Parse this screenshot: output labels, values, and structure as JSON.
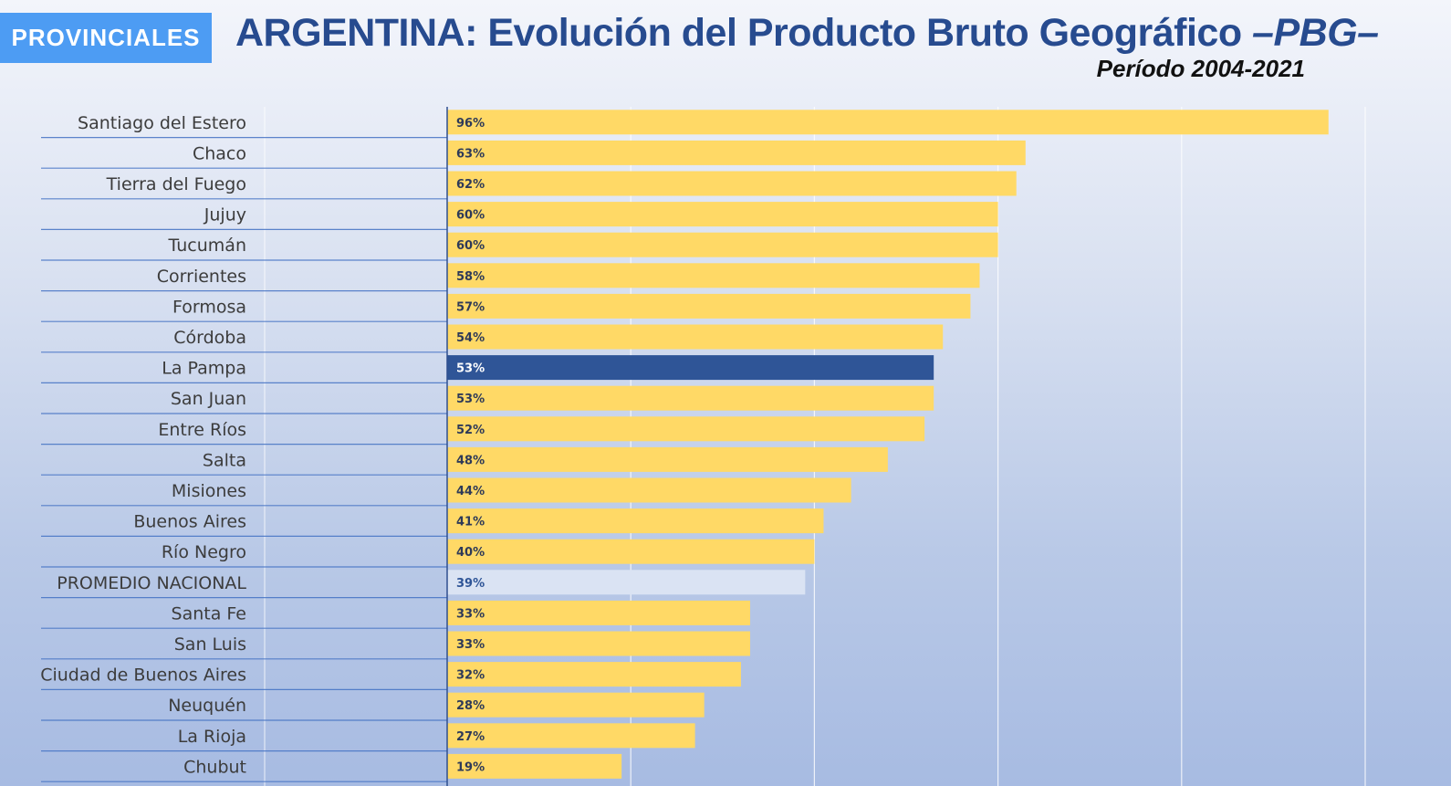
{
  "header": {
    "badge": "PROVINCIALES",
    "title_main": "ARGENTINA: Evolución del Producto Bruto Geográfico ",
    "title_pbg": "–PBG–",
    "subtitle": "Período 2004-2021"
  },
  "colors": {
    "bar": "#ffd966",
    "highlight": "#2f5597",
    "average": "#dae3f3",
    "label_dark": "#2e3a58",
    "label_light": "#ffffff",
    "label_average": "#2f5597",
    "grid": "#ffffff",
    "row_line": "#4472c4"
  },
  "chart_data": {
    "type": "bar",
    "orientation": "horizontal",
    "title": "ARGENTINA: Evolución del Producto Bruto Geográfico –PBG–",
    "subtitle": "Período 2004-2021",
    "xlim": [
      0,
      100
    ],
    "grid": true,
    "categories": [
      "Santiago del Estero",
      "Chaco",
      "Tierra del Fuego",
      "Jujuy",
      "Tucumán",
      "Corrientes",
      "Formosa",
      "Córdoba",
      "La Pampa",
      "San Juan",
      "Entre Ríos",
      "Salta",
      "Misiones",
      "Buenos Aires",
      "Río Negro",
      "PROMEDIO NACIONAL",
      "Santa Fe",
      "San Luis",
      "Ciudad de Buenos Aires",
      "Neuquén",
      "La Rioja",
      "Chubut"
    ],
    "values": [
      96,
      63,
      62,
      60,
      60,
      58,
      57,
      54,
      53,
      53,
      52,
      48,
      44,
      41,
      40,
      39,
      33,
      33,
      32,
      28,
      27,
      19
    ],
    "value_labels": [
      "96%",
      "63%",
      "62%",
      "60%",
      "60%",
      "58%",
      "57%",
      "54%",
      "53%",
      "53%",
      "52%",
      "48%",
      "44%",
      "41%",
      "40%",
      "39%",
      "33%",
      "33%",
      "32%",
      "28%",
      "27%",
      "19%"
    ],
    "highlight": "La Pampa",
    "average": "PROMEDIO NACIONAL"
  }
}
